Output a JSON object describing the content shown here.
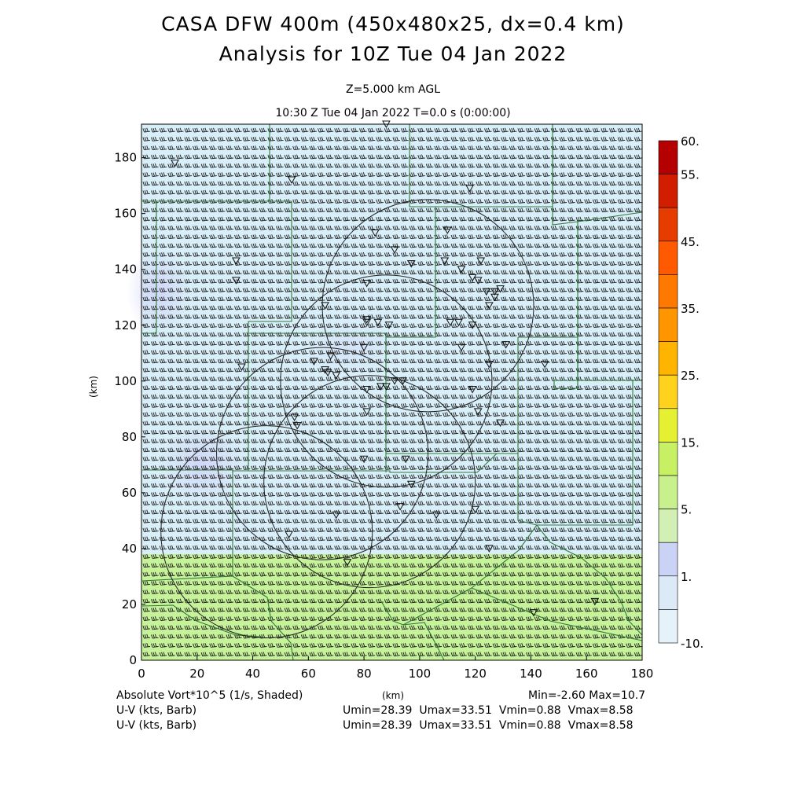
{
  "header": {
    "title_line1": "CASA DFW 400m (450x480x25, dx=0.4 km)",
    "title_line2": "Analysis for 10Z Tue 04 Jan 2022",
    "level": "Z=5.000 km AGL",
    "valid_time": "10:30 Z Tue 04 Jan 2022    T=0.0 s (0:00:00)"
  },
  "axes": {
    "x_ticks": [
      "0",
      "20",
      "40",
      "60",
      "80",
      "100",
      "120",
      "140",
      "160",
      "180"
    ],
    "y_ticks": [
      "0",
      "20",
      "40",
      "60",
      "80",
      "100",
      "120",
      "140",
      "160",
      "180"
    ],
    "x_unit": "(km)",
    "y_unit": "(km)",
    "x_range": [
      0,
      180
    ],
    "y_range": [
      0,
      192
    ]
  },
  "colorbar": {
    "labels": [
      "60.",
      "55.",
      "45.",
      "35.",
      "25.",
      "15.",
      "5.",
      "1.",
      "-10."
    ],
    "colors": [
      "#b40000",
      "#d21e00",
      "#e63c00",
      "#ff5a00",
      "#ff7800",
      "#ff9600",
      "#ffb400",
      "#ffd21e",
      "#e6f032",
      "#c8f064",
      "#c8f08c",
      "#d2f0b4",
      "#cad2f5",
      "#dceaf8",
      "#e6f2fa"
    ]
  },
  "field": {
    "upper_color": "#d8eef8",
    "lower_color": "#c6f29a",
    "vort_min_color": "#cfd3f6",
    "boundary_y_km": 38
  },
  "radars": [
    {
      "x_km": 45,
      "y_km": 46
    },
    {
      "x_km": 82,
      "y_km": 64
    },
    {
      "x_km": 88,
      "y_km": 100
    },
    {
      "x_km": 65,
      "y_km": 74
    },
    {
      "x_km": 103,
      "y_km": 127
    }
  ],
  "stations": [
    [
      12,
      178
    ],
    [
      54,
      172
    ],
    [
      88,
      192
    ],
    [
      118,
      169
    ],
    [
      84,
      153
    ],
    [
      110,
      154
    ],
    [
      91,
      147
    ],
    [
      34,
      143
    ],
    [
      34,
      136
    ],
    [
      97,
      142
    ],
    [
      109,
      143
    ],
    [
      115,
      140
    ],
    [
      122,
      143
    ],
    [
      119,
      137
    ],
    [
      121,
      136
    ],
    [
      81,
      135
    ],
    [
      124,
      132
    ],
    [
      127,
      132
    ],
    [
      129,
      133
    ],
    [
      127,
      130
    ],
    [
      125,
      127
    ],
    [
      66,
      127
    ],
    [
      81,
      122
    ],
    [
      81,
      121
    ],
    [
      85,
      121
    ],
    [
      89,
      120
    ],
    [
      111,
      121
    ],
    [
      114,
      121
    ],
    [
      119,
      120
    ],
    [
      80,
      112
    ],
    [
      115,
      112
    ],
    [
      131,
      113
    ],
    [
      36,
      105
    ],
    [
      62,
      107
    ],
    [
      68,
      109
    ],
    [
      66,
      104
    ],
    [
      67,
      103
    ],
    [
      70,
      102
    ],
    [
      125,
      106
    ],
    [
      145,
      106
    ],
    [
      81,
      97
    ],
    [
      86,
      98
    ],
    [
      88,
      98
    ],
    [
      91,
      100
    ],
    [
      94,
      100
    ],
    [
      119,
      97
    ],
    [
      55,
      87
    ],
    [
      56,
      84
    ],
    [
      81,
      89
    ],
    [
      121,
      89
    ],
    [
      129,
      85
    ],
    [
      80,
      72
    ],
    [
      95,
      72
    ],
    [
      97,
      63
    ],
    [
      93,
      55
    ],
    [
      70,
      52
    ],
    [
      106,
      52
    ],
    [
      120,
      54
    ],
    [
      53,
      45
    ],
    [
      74,
      35
    ],
    [
      125,
      40
    ],
    [
      141,
      17
    ],
    [
      163,
      21
    ]
  ],
  "footer": {
    "field_label": "Absolute Vort*10^5 (1/s, Shaded)",
    "x_unit_label": "(km)",
    "minmax": "Min=-2.60 Max=10.7",
    "wind_label_1": "U-V (kts, Barb)",
    "wind_label_2": "U-V (kts, Barb)",
    "wind_stats_1": "Umin=28.39  Umax=33.51  Vmin=0.88  Vmax=8.58",
    "wind_stats_2": "Umin=28.39  Umax=33.51  Vmin=0.88  Vmax=8.58"
  }
}
